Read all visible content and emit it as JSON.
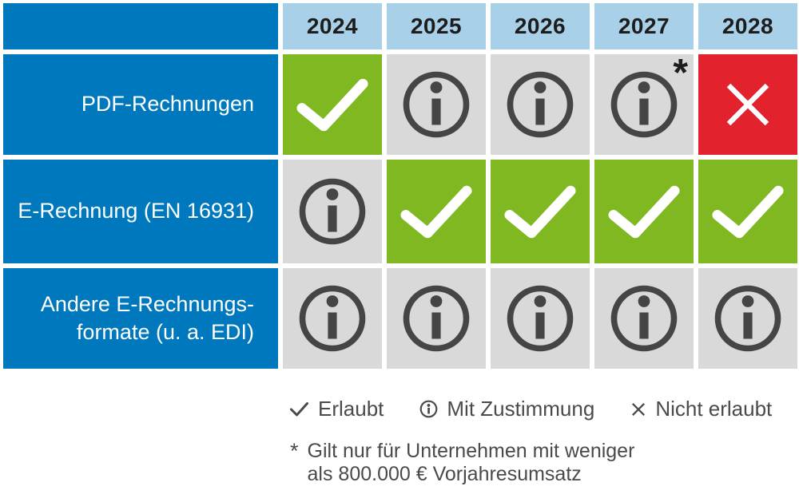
{
  "table": {
    "corner_label": "",
    "years": [
      "2024",
      "2025",
      "2026",
      "2027",
      "2028"
    ],
    "rows": [
      {
        "label": "PDF-Rechnungen",
        "cells": [
          "allowed",
          "consent",
          "consent",
          "consent-note",
          "not-allowed"
        ]
      },
      {
        "label": "E-Rechnung (EN 16931)",
        "cells": [
          "consent",
          "allowed",
          "allowed",
          "allowed",
          "allowed"
        ]
      },
      {
        "label": "Andere E-Rechnungs-\nformate (u. a. EDI)",
        "cells": [
          "consent",
          "consent",
          "consent",
          "consent",
          "consent"
        ]
      }
    ],
    "note_marker": "*"
  },
  "legend": {
    "items": [
      {
        "icon": "check-icon",
        "label": "Erlaubt"
      },
      {
        "icon": "info-icon",
        "label": "Mit Zustimmung"
      },
      {
        "icon": "cross-icon",
        "label": "Nicht erlaubt"
      }
    ]
  },
  "footnote": {
    "marker": "*",
    "text": "Gilt nur für Unternehmen mit weniger\nals 800.000 € Vorjahresumsatz"
  },
  "colors": {
    "blue": "#0078BE",
    "light_blue": "#A9D0E9",
    "green": "#80B821",
    "gray": "#D9D9D9",
    "red": "#E2232E",
    "icon_dark": "#454545",
    "text_dark": "#4A4A49",
    "year_text": "#1D1D1B",
    "white": "#FFFFFF"
  },
  "chart_data": {
    "type": "table",
    "title": "",
    "columns": [
      "",
      "2024",
      "2025",
      "2026",
      "2027",
      "2028"
    ],
    "rows": [
      {
        "label": "PDF-Rechnungen",
        "values": [
          "Erlaubt",
          "Mit Zustimmung",
          "Mit Zustimmung",
          "Mit Zustimmung *",
          "Nicht erlaubt"
        ]
      },
      {
        "label": "E-Rechnung (EN 16931)",
        "values": [
          "Mit Zustimmung",
          "Erlaubt",
          "Erlaubt",
          "Erlaubt",
          "Erlaubt"
        ]
      },
      {
        "label": "Andere E-Rechnungsformate (u. a. EDI)",
        "values": [
          "Mit Zustimmung",
          "Mit Zustimmung",
          "Mit Zustimmung",
          "Mit Zustimmung",
          "Mit Zustimmung"
        ]
      }
    ],
    "legend": [
      "Erlaubt",
      "Mit Zustimmung",
      "Nicht erlaubt"
    ],
    "legend_position": "bottom",
    "footnote": "* Gilt nur für Unternehmen mit weniger als 800.000 € Vorjahresumsatz"
  }
}
